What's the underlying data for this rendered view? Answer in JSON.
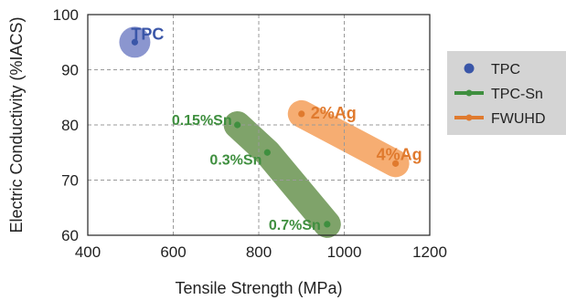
{
  "chart_data": {
    "type": "scatter",
    "title": "",
    "xlabel": "Tensile Strength (MPa)",
    "ylabel": "Electric Conductivity (%IACS)",
    "xlim": [
      400,
      1200
    ],
    "ylim": [
      60,
      100
    ],
    "xticks": [
      "400",
      "600",
      "800",
      "1000",
      "1200"
    ],
    "yticks": [
      "60",
      "70",
      "80",
      "90",
      "100"
    ],
    "grid": true,
    "legend_position": "right",
    "series": [
      {
        "name": "TPC",
        "color": "#3a56a8",
        "band_color": "#8b96cf",
        "points": [
          {
            "x": 510,
            "y": 95,
            "label": "TPC"
          }
        ]
      },
      {
        "name": "TPC-Sn",
        "color": "#3f8f3f",
        "band_color": "#7fa36a",
        "points": [
          {
            "x": 750,
            "y": 80,
            "label": "0.15%Sn"
          },
          {
            "x": 820,
            "y": 75,
            "label": "0.3%Sn"
          },
          {
            "x": 960,
            "y": 62,
            "label": "0.7%Sn"
          }
        ]
      },
      {
        "name": "FWUHD",
        "color": "#e07a2e",
        "band_color": "#f6ad72",
        "points": [
          {
            "x": 900,
            "y": 82,
            "label": "2%Ag"
          },
          {
            "x": 1120,
            "y": 73,
            "label": "4%Ag"
          }
        ]
      }
    ]
  }
}
